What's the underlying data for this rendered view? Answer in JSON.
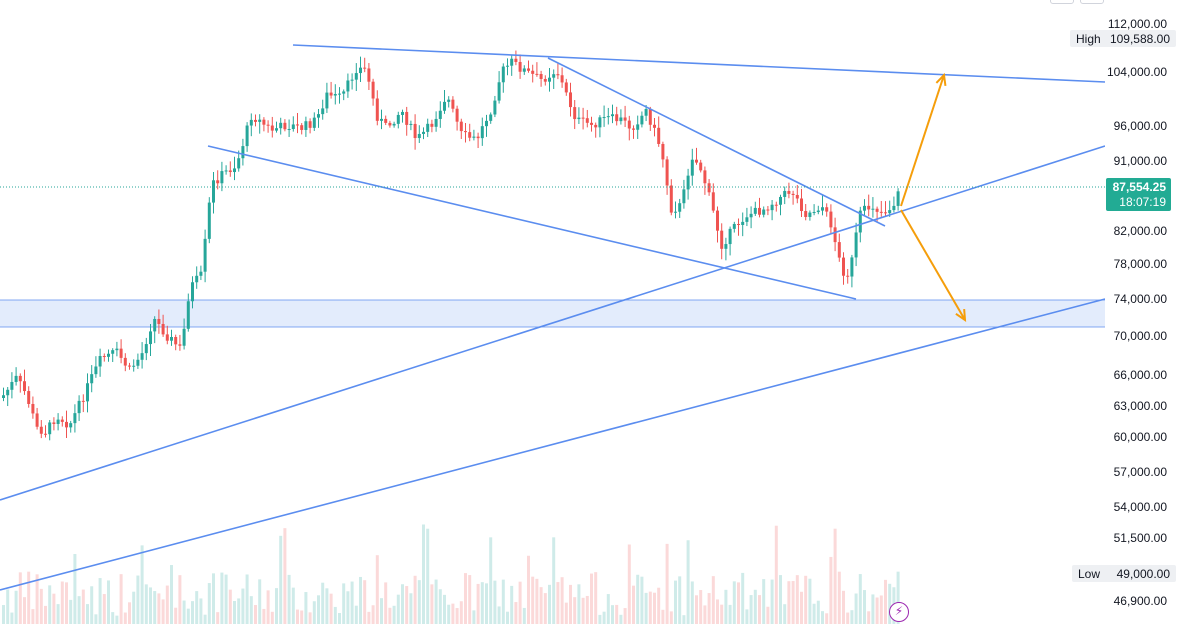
{
  "price_axis": {
    "ticks": [
      "112,000.00",
      "104,000.00",
      "96,000.00",
      "91,000.00",
      "82,000.00",
      "78,000.00",
      "74,000.00",
      "70,000.00",
      "66,000.00",
      "63,000.00",
      "60,000.00",
      "57,000.00",
      "54,000.00",
      "51,500.00",
      "46,900.00"
    ],
    "high_label": "High",
    "high_value": "109,588.00",
    "low_label": "Low",
    "low_value": "49,000.00",
    "current_price": "87,554.25",
    "countdown": "18:07:19"
  },
  "colors": {
    "up": "#26a69a",
    "down": "#ef5350",
    "trendline": "#5b8def",
    "arrow": "#f59e0b",
    "zone_fill": "#e3ecfc",
    "zone_border": "#5b8def",
    "price_tag": "#22ab94"
  },
  "chart_data": {
    "type": "candlestick",
    "y_scale": "log",
    "last_price": 87554.25,
    "high": 109588.0,
    "low": 49000.0,
    "support_zone": [
      71000,
      74000
    ],
    "annotations": [
      "trendlines",
      "arrow-up-target",
      "arrow-down-target",
      "support-zone"
    ]
  },
  "bolt_icon": "⚡"
}
